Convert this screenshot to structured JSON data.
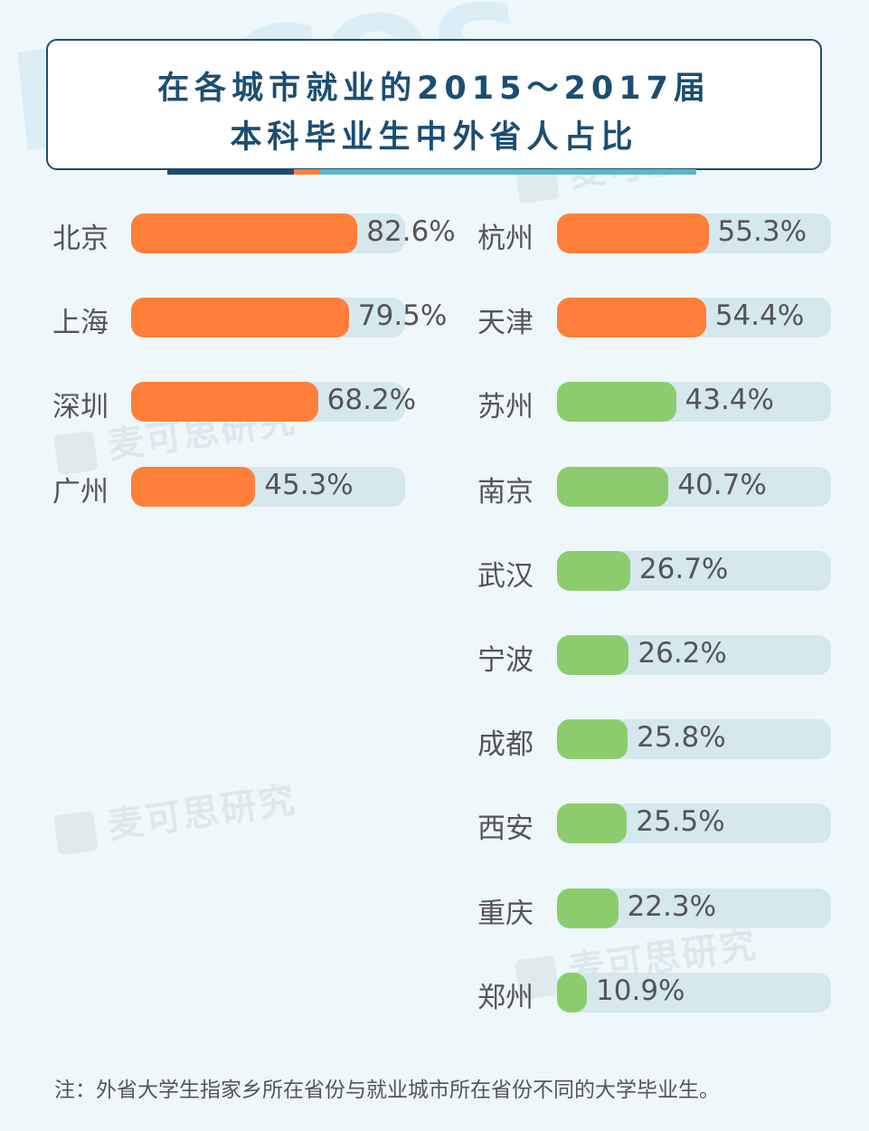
{
  "background_logo": "MyCOS",
  "watermark_text": "麦可思研究",
  "colors": {
    "orange": "#ff7f3a",
    "green": "#8dcc6c",
    "track": "#d4e8ee",
    "title": "#1b4e72"
  },
  "title": {
    "line1": "在各城市就业的2015～2017届",
    "line2": "本科毕业生中外省人占比"
  },
  "chart_data": {
    "type": "bar",
    "orientation": "horizontal",
    "unit": "%",
    "xlim": [
      0,
      100
    ],
    "grid": false,
    "legend": "none",
    "groups": [
      {
        "column": "left",
        "items": [
          {
            "city": "北京",
            "value": 82.6,
            "label": "82.6%",
            "color": "orange"
          },
          {
            "city": "上海",
            "value": 79.5,
            "label": "79.5%",
            "color": "orange"
          },
          {
            "city": "深圳",
            "value": 68.2,
            "label": "68.2%",
            "color": "orange"
          },
          {
            "city": "广州",
            "value": 45.3,
            "label": "45.3%",
            "color": "orange"
          }
        ]
      },
      {
        "column": "right",
        "items": [
          {
            "city": "杭州",
            "value": 55.3,
            "label": "55.3%",
            "color": "orange"
          },
          {
            "city": "天津",
            "value": 54.4,
            "label": "54.4%",
            "color": "orange"
          },
          {
            "city": "苏州",
            "value": 43.4,
            "label": "43.4%",
            "color": "green"
          },
          {
            "city": "南京",
            "value": 40.7,
            "label": "40.7%",
            "color": "green"
          },
          {
            "city": "武汉",
            "value": 26.7,
            "label": "26.7%",
            "color": "green"
          },
          {
            "city": "宁波",
            "value": 26.2,
            "label": "26.2%",
            "color": "green"
          },
          {
            "city": "成都",
            "value": 25.8,
            "label": "25.8%",
            "color": "green"
          },
          {
            "city": "西安",
            "value": 25.5,
            "label": "25.5%",
            "color": "green"
          },
          {
            "city": "重庆",
            "value": 22.3,
            "label": "22.3%",
            "color": "green"
          },
          {
            "city": "郑州",
            "value": 10.9,
            "label": "10.9%",
            "color": "green"
          }
        ]
      }
    ]
  },
  "note": "注：外省大学生指家乡所在省份与就业城市所在省份不同的大学毕业生。"
}
